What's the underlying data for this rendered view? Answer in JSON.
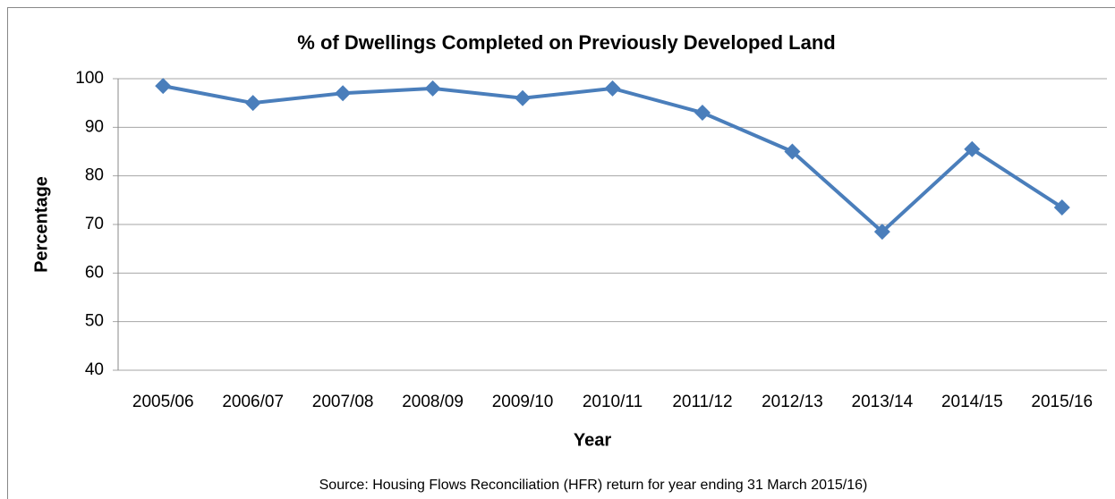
{
  "chart_data": {
    "type": "line",
    "title": "% of Dwellings Completed on Previously Developed Land",
    "xlabel": "Year",
    "ylabel": "Percentage",
    "source": "Source: Housing Flows Reconciliation (HFR) return for year ending 31 March 2015/16)",
    "categories": [
      "2005/06",
      "2006/07",
      "2007/08",
      "2008/09",
      "2009/10",
      "2010/11",
      "2011/12",
      "2012/13",
      "2013/14",
      "2014/15",
      "2015/16"
    ],
    "series": [
      {
        "color": "#4a7ebb",
        "values": [
          98.5,
          95,
          97,
          98,
          96,
          98,
          93,
          85,
          68.5,
          85.5,
          73.5
        ]
      }
    ],
    "ylim": [
      40,
      100
    ],
    "yticks": [
      40,
      50,
      60,
      70,
      80,
      90,
      100
    ],
    "grid": true
  }
}
